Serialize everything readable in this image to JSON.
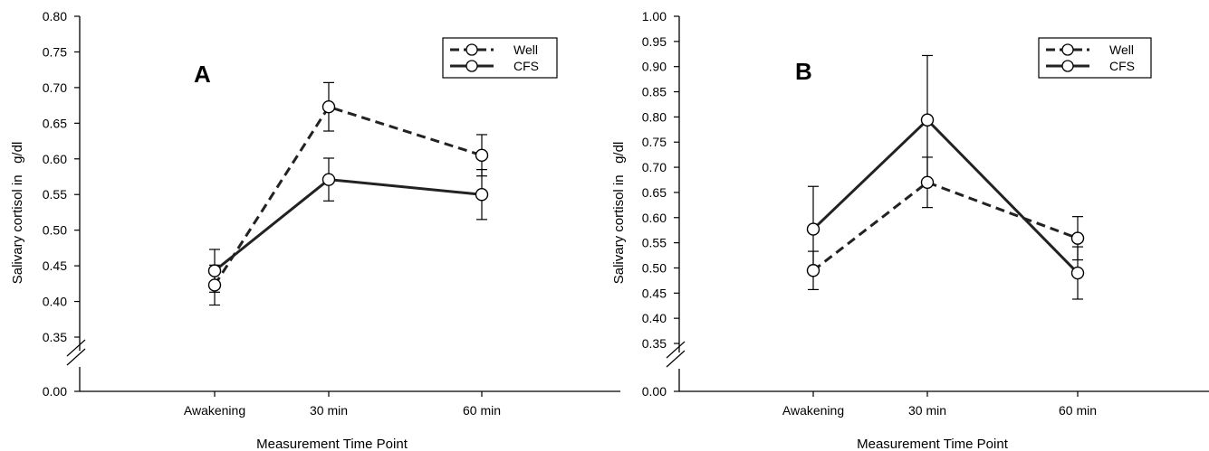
{
  "chart_data": [
    {
      "type": "line",
      "panel_label": "A",
      "xlabel": "Measurement Time Point",
      "ylabel": "Salivary cortisol in   g/dl",
      "categories": [
        "Awakening",
        "30 min",
        "60 min"
      ],
      "y_break": true,
      "ylim": [
        0.0,
        0.8
      ],
      "y_ticks": [
        "0.00",
        "0.35",
        "0.40",
        "0.45",
        "0.50",
        "0.55",
        "0.60",
        "0.65",
        "0.70",
        "0.75",
        "0.80"
      ],
      "grid": false,
      "legend_position": "top-right",
      "series": [
        {
          "name": "Well",
          "style": "dashed",
          "values": [
            0.423,
            0.673,
            0.605
          ],
          "errors": [
            0.028,
            0.034,
            0.029
          ]
        },
        {
          "name": "CFS",
          "style": "solid",
          "values": [
            0.443,
            0.571,
            0.55
          ],
          "errors": [
            0.03,
            0.03,
            0.035
          ]
        }
      ]
    },
    {
      "type": "line",
      "panel_label": "B",
      "xlabel": "Measurement Time Point",
      "ylabel": "Salivary cortisol in   g/dl",
      "categories": [
        "Awakening",
        "30 min",
        "60 min"
      ],
      "y_break": true,
      "ylim": [
        0.0,
        1.0
      ],
      "y_ticks": [
        "0.00",
        "0.35",
        "0.40",
        "0.45",
        "0.50",
        "0.55",
        "0.60",
        "0.65",
        "0.70",
        "0.75",
        "0.80",
        "0.85",
        "0.90",
        "0.95",
        "1.00"
      ],
      "grid": false,
      "legend_position": "top-right",
      "series": [
        {
          "name": "Well",
          "style": "dashed",
          "values": [
            0.495,
            0.67,
            0.559
          ],
          "errors": [
            0.038,
            0.05,
            0.043
          ]
        },
        {
          "name": "CFS",
          "style": "solid",
          "values": [
            0.577,
            0.794,
            0.49
          ],
          "errors": [
            0.085,
            0.128,
            0.052
          ]
        }
      ]
    }
  ]
}
